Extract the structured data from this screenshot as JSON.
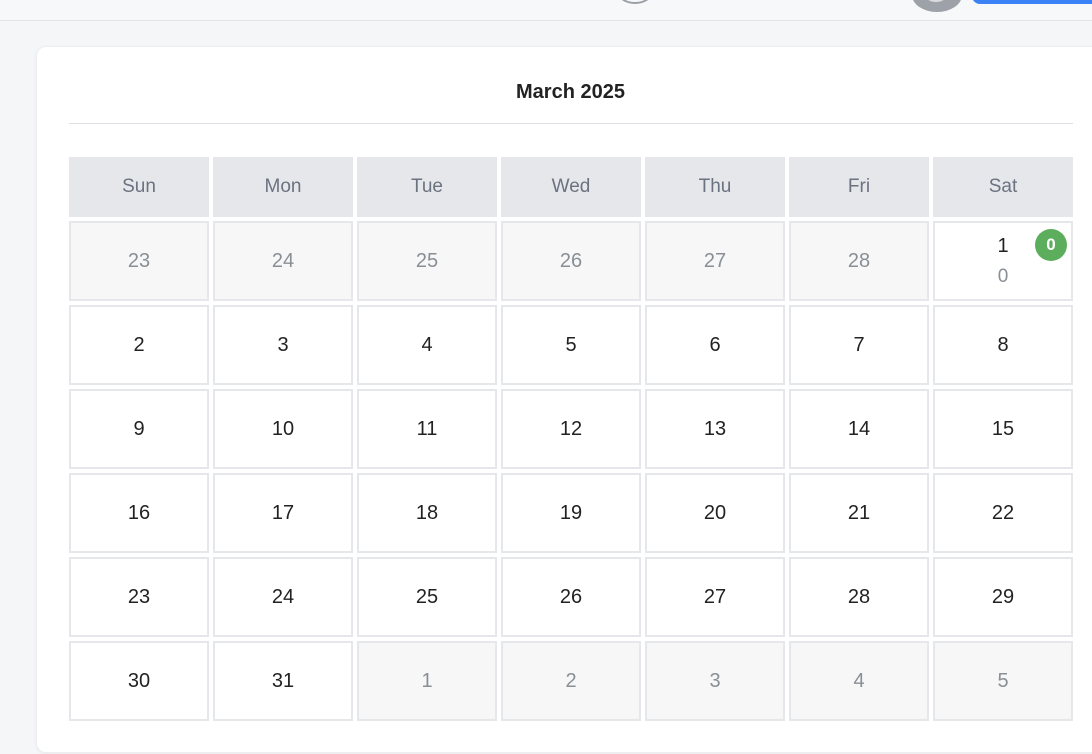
{
  "calendar": {
    "title": "March 2025",
    "weekdays": [
      "Sun",
      "Mon",
      "Tue",
      "Wed",
      "Thu",
      "Fri",
      "Sat"
    ],
    "rows": [
      [
        {
          "day": "23",
          "muted": true
        },
        {
          "day": "24",
          "muted": true
        },
        {
          "day": "25",
          "muted": true
        },
        {
          "day": "26",
          "muted": true
        },
        {
          "day": "27",
          "muted": true
        },
        {
          "day": "28",
          "muted": true
        },
        {
          "day": "1",
          "muted": false,
          "count": "0",
          "badge": "0"
        }
      ],
      [
        {
          "day": "2"
        },
        {
          "day": "3"
        },
        {
          "day": "4"
        },
        {
          "day": "5"
        },
        {
          "day": "6"
        },
        {
          "day": "7"
        },
        {
          "day": "8"
        }
      ],
      [
        {
          "day": "9"
        },
        {
          "day": "10"
        },
        {
          "day": "11"
        },
        {
          "day": "12"
        },
        {
          "day": "13"
        },
        {
          "day": "14"
        },
        {
          "day": "15"
        }
      ],
      [
        {
          "day": "16"
        },
        {
          "day": "17"
        },
        {
          "day": "18"
        },
        {
          "day": "19"
        },
        {
          "day": "20"
        },
        {
          "day": "21"
        },
        {
          "day": "22"
        }
      ],
      [
        {
          "day": "23"
        },
        {
          "day": "24"
        },
        {
          "day": "25"
        },
        {
          "day": "26"
        },
        {
          "day": "27"
        },
        {
          "day": "28"
        },
        {
          "day": "29"
        }
      ],
      [
        {
          "day": "30"
        },
        {
          "day": "31"
        },
        {
          "day": "1",
          "muted": true
        },
        {
          "day": "2",
          "muted": true
        },
        {
          "day": "3",
          "muted": true
        },
        {
          "day": "4",
          "muted": true
        },
        {
          "day": "5",
          "muted": true
        }
      ]
    ]
  },
  "colors": {
    "badge": "#5cae5c",
    "header_bg": "#e5e7eb",
    "primary": "#3b82f6"
  },
  "icons": {
    "topbar": [
      "circle-icon",
      "avatar-icon"
    ]
  }
}
